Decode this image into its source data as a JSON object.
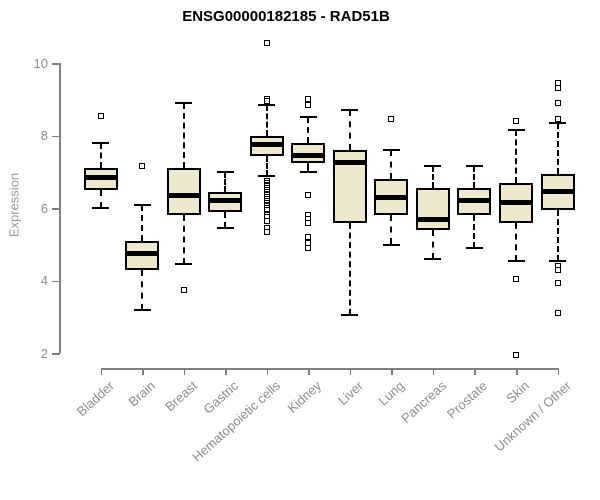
{
  "chart_data": {
    "type": "boxplot",
    "title": "ENSG00000182185 - RAD51B",
    "ylabel": "Expression",
    "xlabel": "",
    "ylim": [
      2,
      10.6
    ],
    "yticks": [
      10,
      8,
      6,
      4,
      2
    ],
    "grid": false,
    "legend": "none",
    "colors": {
      "box_fill": "#EEE8CD",
      "box_line": "#000000",
      "axis": "#808080",
      "tick_label": "#8C8C8C",
      "title": "#000000"
    },
    "categories": [
      "Bladder",
      "Brain",
      "Breast",
      "Gastric",
      "Hematopoietic cells",
      "Kidney",
      "Liver",
      "Lung",
      "Pancreas",
      "Prostate",
      "Skin",
      "Unknown / Other"
    ],
    "series": [
      {
        "category": "Bladder",
        "whisker_low": 6.0,
        "q1": 6.5,
        "median": 6.85,
        "q3": 7.1,
        "whisker_high": 7.8,
        "outliers": [
          8.55
        ]
      },
      {
        "category": "Brain",
        "whisker_low": 3.2,
        "q1": 4.3,
        "median": 4.75,
        "q3": 5.1,
        "whisker_high": 6.1,
        "outliers": [
          7.15
        ]
      },
      {
        "category": "Breast",
        "whisker_low": 4.45,
        "q1": 5.8,
        "median": 6.35,
        "q3": 7.1,
        "whisker_high": 8.9,
        "outliers": [
          3.75
        ]
      },
      {
        "category": "Gastric",
        "whisker_low": 5.45,
        "q1": 5.9,
        "median": 6.2,
        "q3": 6.45,
        "whisker_high": 7.0,
        "outliers": []
      },
      {
        "category": "Hematopoietic cells",
        "whisker_low": 6.9,
        "q1": 7.45,
        "median": 7.75,
        "q3": 8.0,
        "whisker_high": 8.85,
        "outliers": [
          10.55,
          9.0,
          8.95,
          6.75,
          6.7,
          6.65,
          6.6,
          6.55,
          6.5,
          6.45,
          6.4,
          6.35,
          6.3,
          6.25,
          6.2,
          6.15,
          6.1,
          6.05,
          6.0,
          5.95,
          5.85,
          5.8,
          5.75,
          5.65,
          5.45,
          5.35
        ]
      },
      {
        "category": "Kidney",
        "whisker_low": 7.0,
        "q1": 7.25,
        "median": 7.45,
        "q3": 7.8,
        "whisker_high": 8.5,
        "outliers": [
          9.0,
          8.85,
          6.35,
          5.8,
          5.7,
          5.6,
          5.2,
          5.05,
          4.9
        ]
      },
      {
        "category": "Liver",
        "whisker_low": 3.05,
        "q1": 5.6,
        "median": 7.25,
        "q3": 7.6,
        "whisker_high": 8.7,
        "outliers": []
      },
      {
        "category": "Lung",
        "whisker_low": 5.0,
        "q1": 5.8,
        "median": 6.3,
        "q3": 6.8,
        "whisker_high": 7.6,
        "outliers": [
          8.45
        ]
      },
      {
        "category": "Pancreas",
        "whisker_low": 4.6,
        "q1": 5.4,
        "median": 5.7,
        "q3": 6.55,
        "whisker_high": 7.15,
        "outliers": []
      },
      {
        "category": "Prostate",
        "whisker_low": 4.9,
        "q1": 5.8,
        "median": 6.2,
        "q3": 6.55,
        "whisker_high": 7.15,
        "outliers": []
      },
      {
        "category": "Skin",
        "whisker_low": 4.55,
        "q1": 5.6,
        "median": 6.15,
        "q3": 6.7,
        "whisker_high": 8.15,
        "outliers": [
          8.4,
          4.05,
          1.95
        ]
      },
      {
        "category": "Unknown / Other",
        "whisker_low": 4.55,
        "q1": 5.95,
        "median": 6.45,
        "q3": 6.95,
        "whisker_high": 8.35,
        "outliers": [
          9.45,
          9.3,
          8.9,
          8.45,
          4.4,
          4.3,
          3.95,
          3.1
        ]
      }
    ]
  }
}
